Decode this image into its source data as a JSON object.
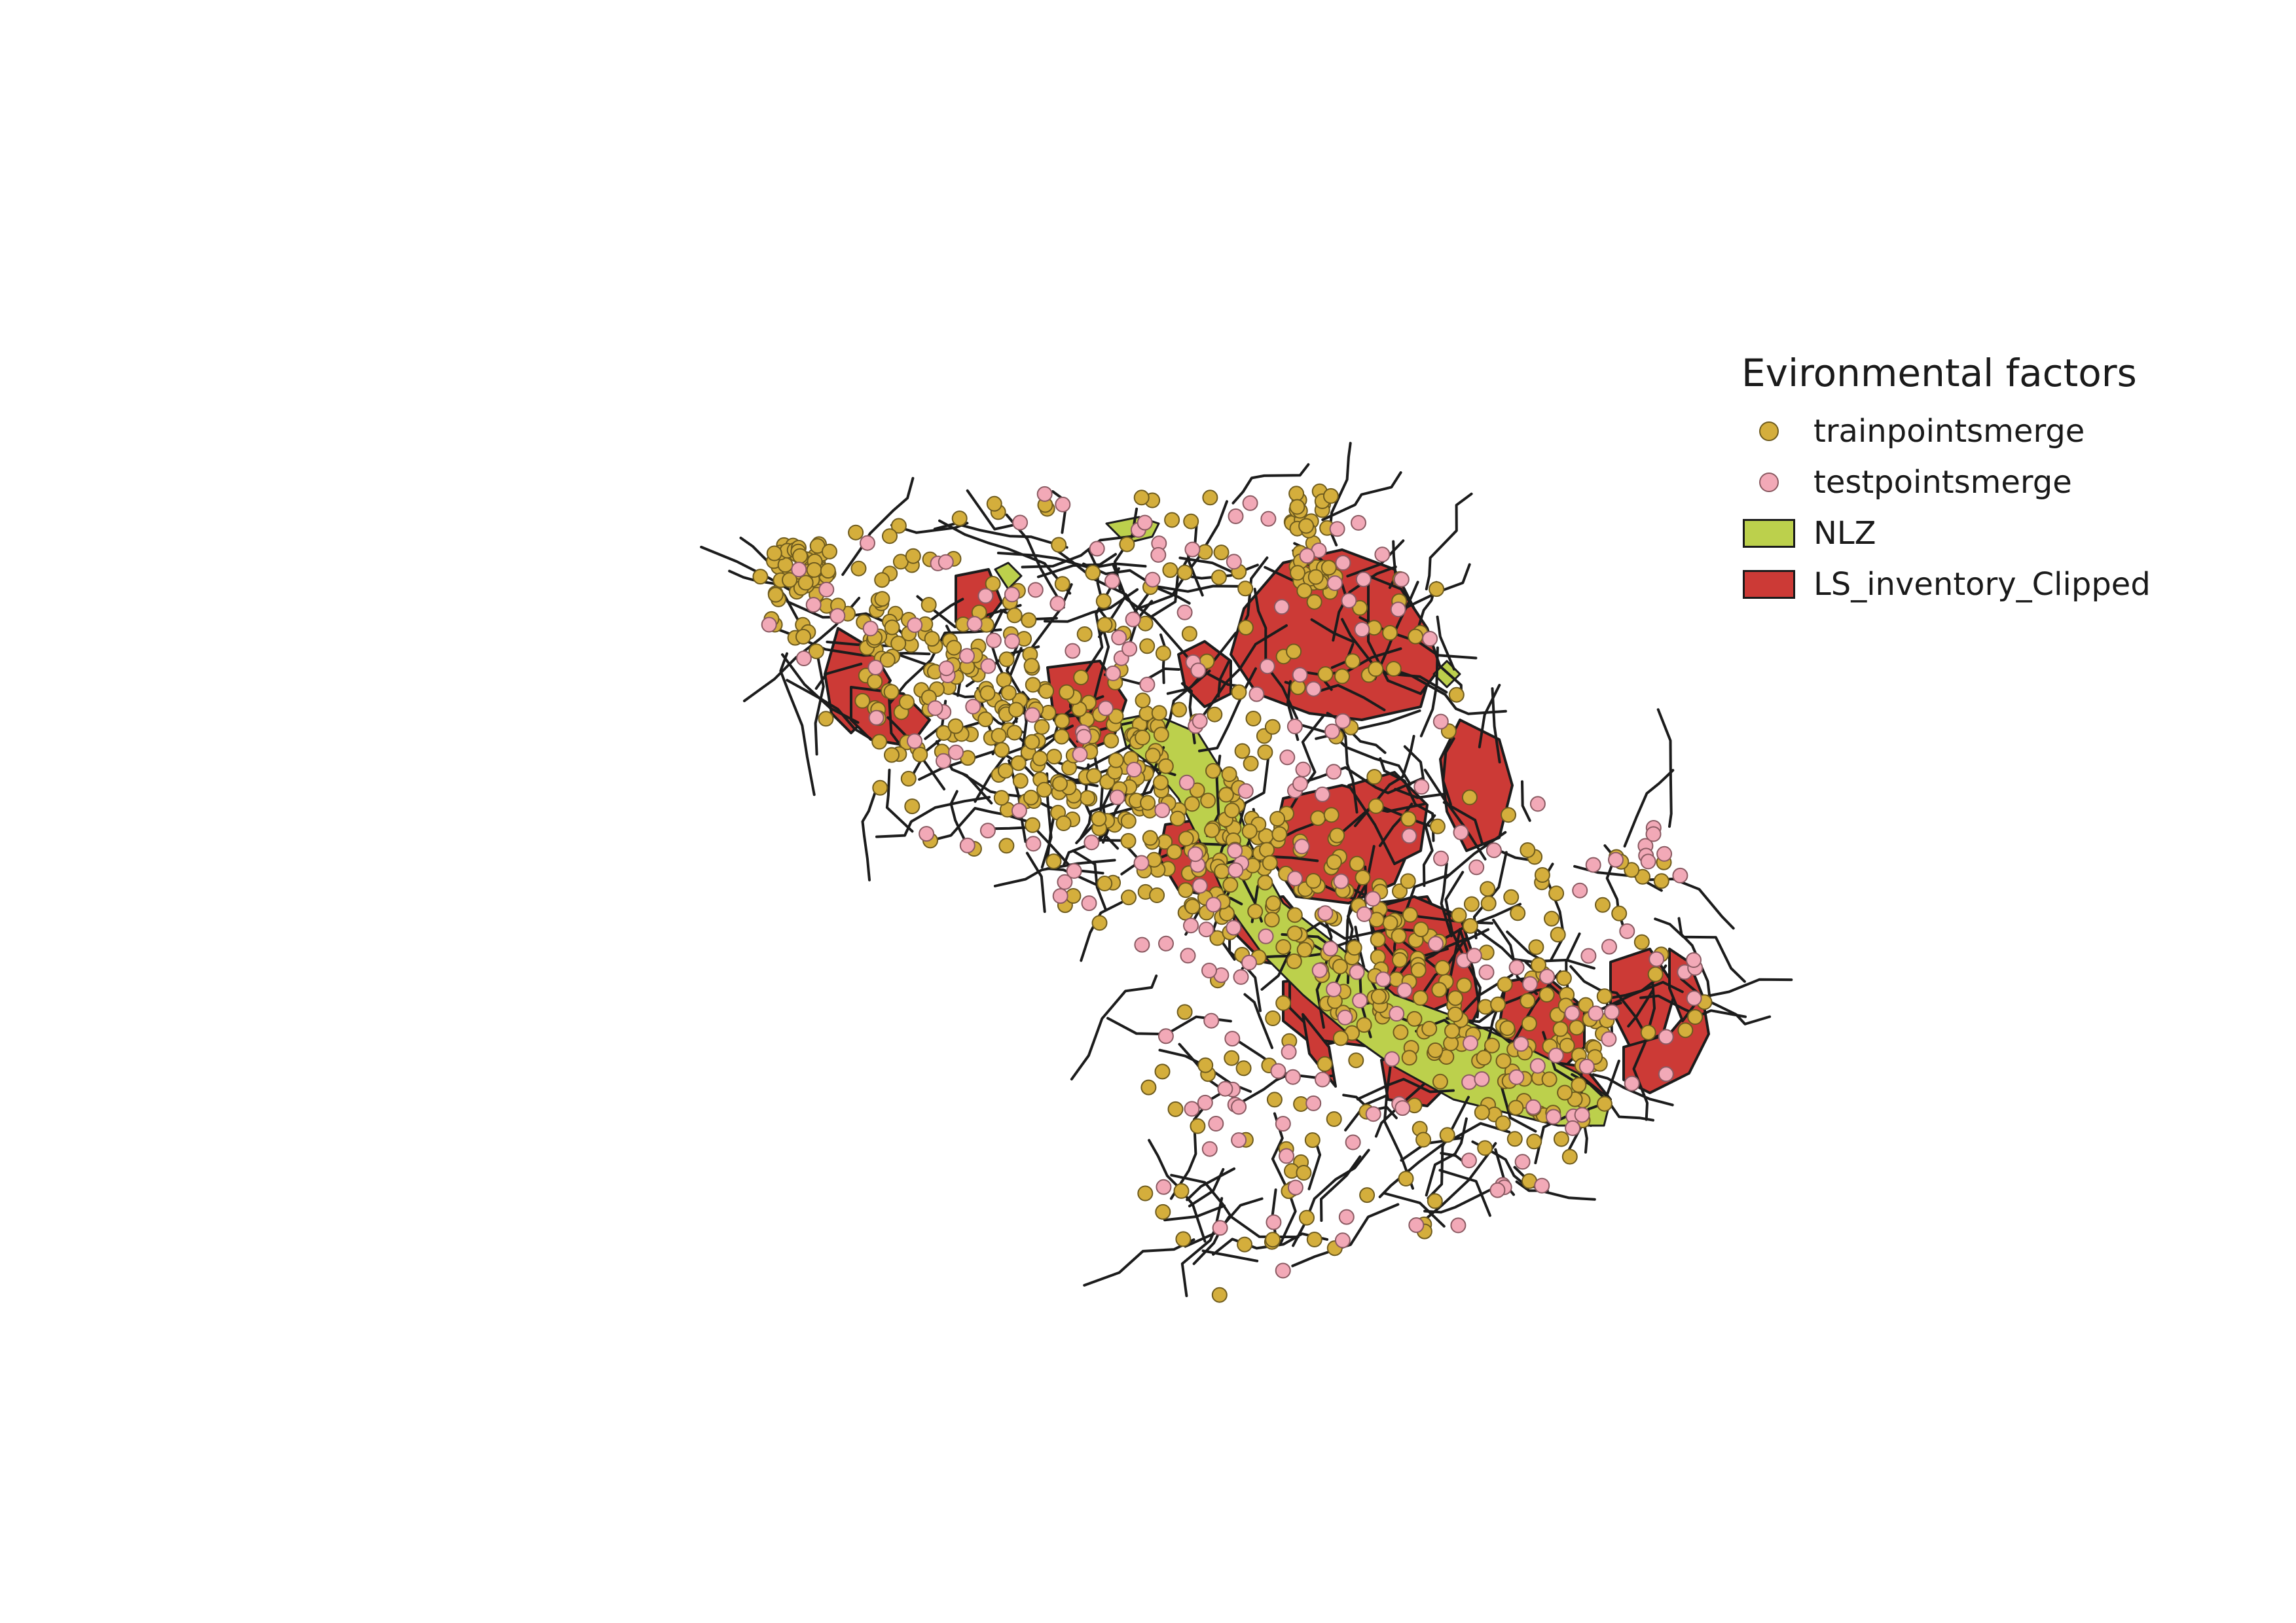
{
  "legend": {
    "title": "Evironmental factors",
    "items": [
      {
        "label": "trainpointsmerge",
        "type": "point",
        "color": "#d4ae3c",
        "name": "legend-item-trainpoints"
      },
      {
        "label": "testpointsmerge",
        "type": "point",
        "color": "#f2a9b7",
        "name": "legend-item-testpoints"
      },
      {
        "label": "NLZ",
        "type": "polygon",
        "color": "#bcd04c",
        "name": "legend-item-nlz"
      },
      {
        "label": "LS_inventory_Clipped",
        "type": "polygon",
        "color": "#cc3a36",
        "name": "legend-item-ls-inventory"
      }
    ]
  },
  "colors": {
    "train_point": "#d4ae3c",
    "test_point": "#f2a9b7",
    "nlz": "#bcd04c",
    "ls_inventory": "#cc3a36",
    "drainage": "#1c1c1c"
  }
}
